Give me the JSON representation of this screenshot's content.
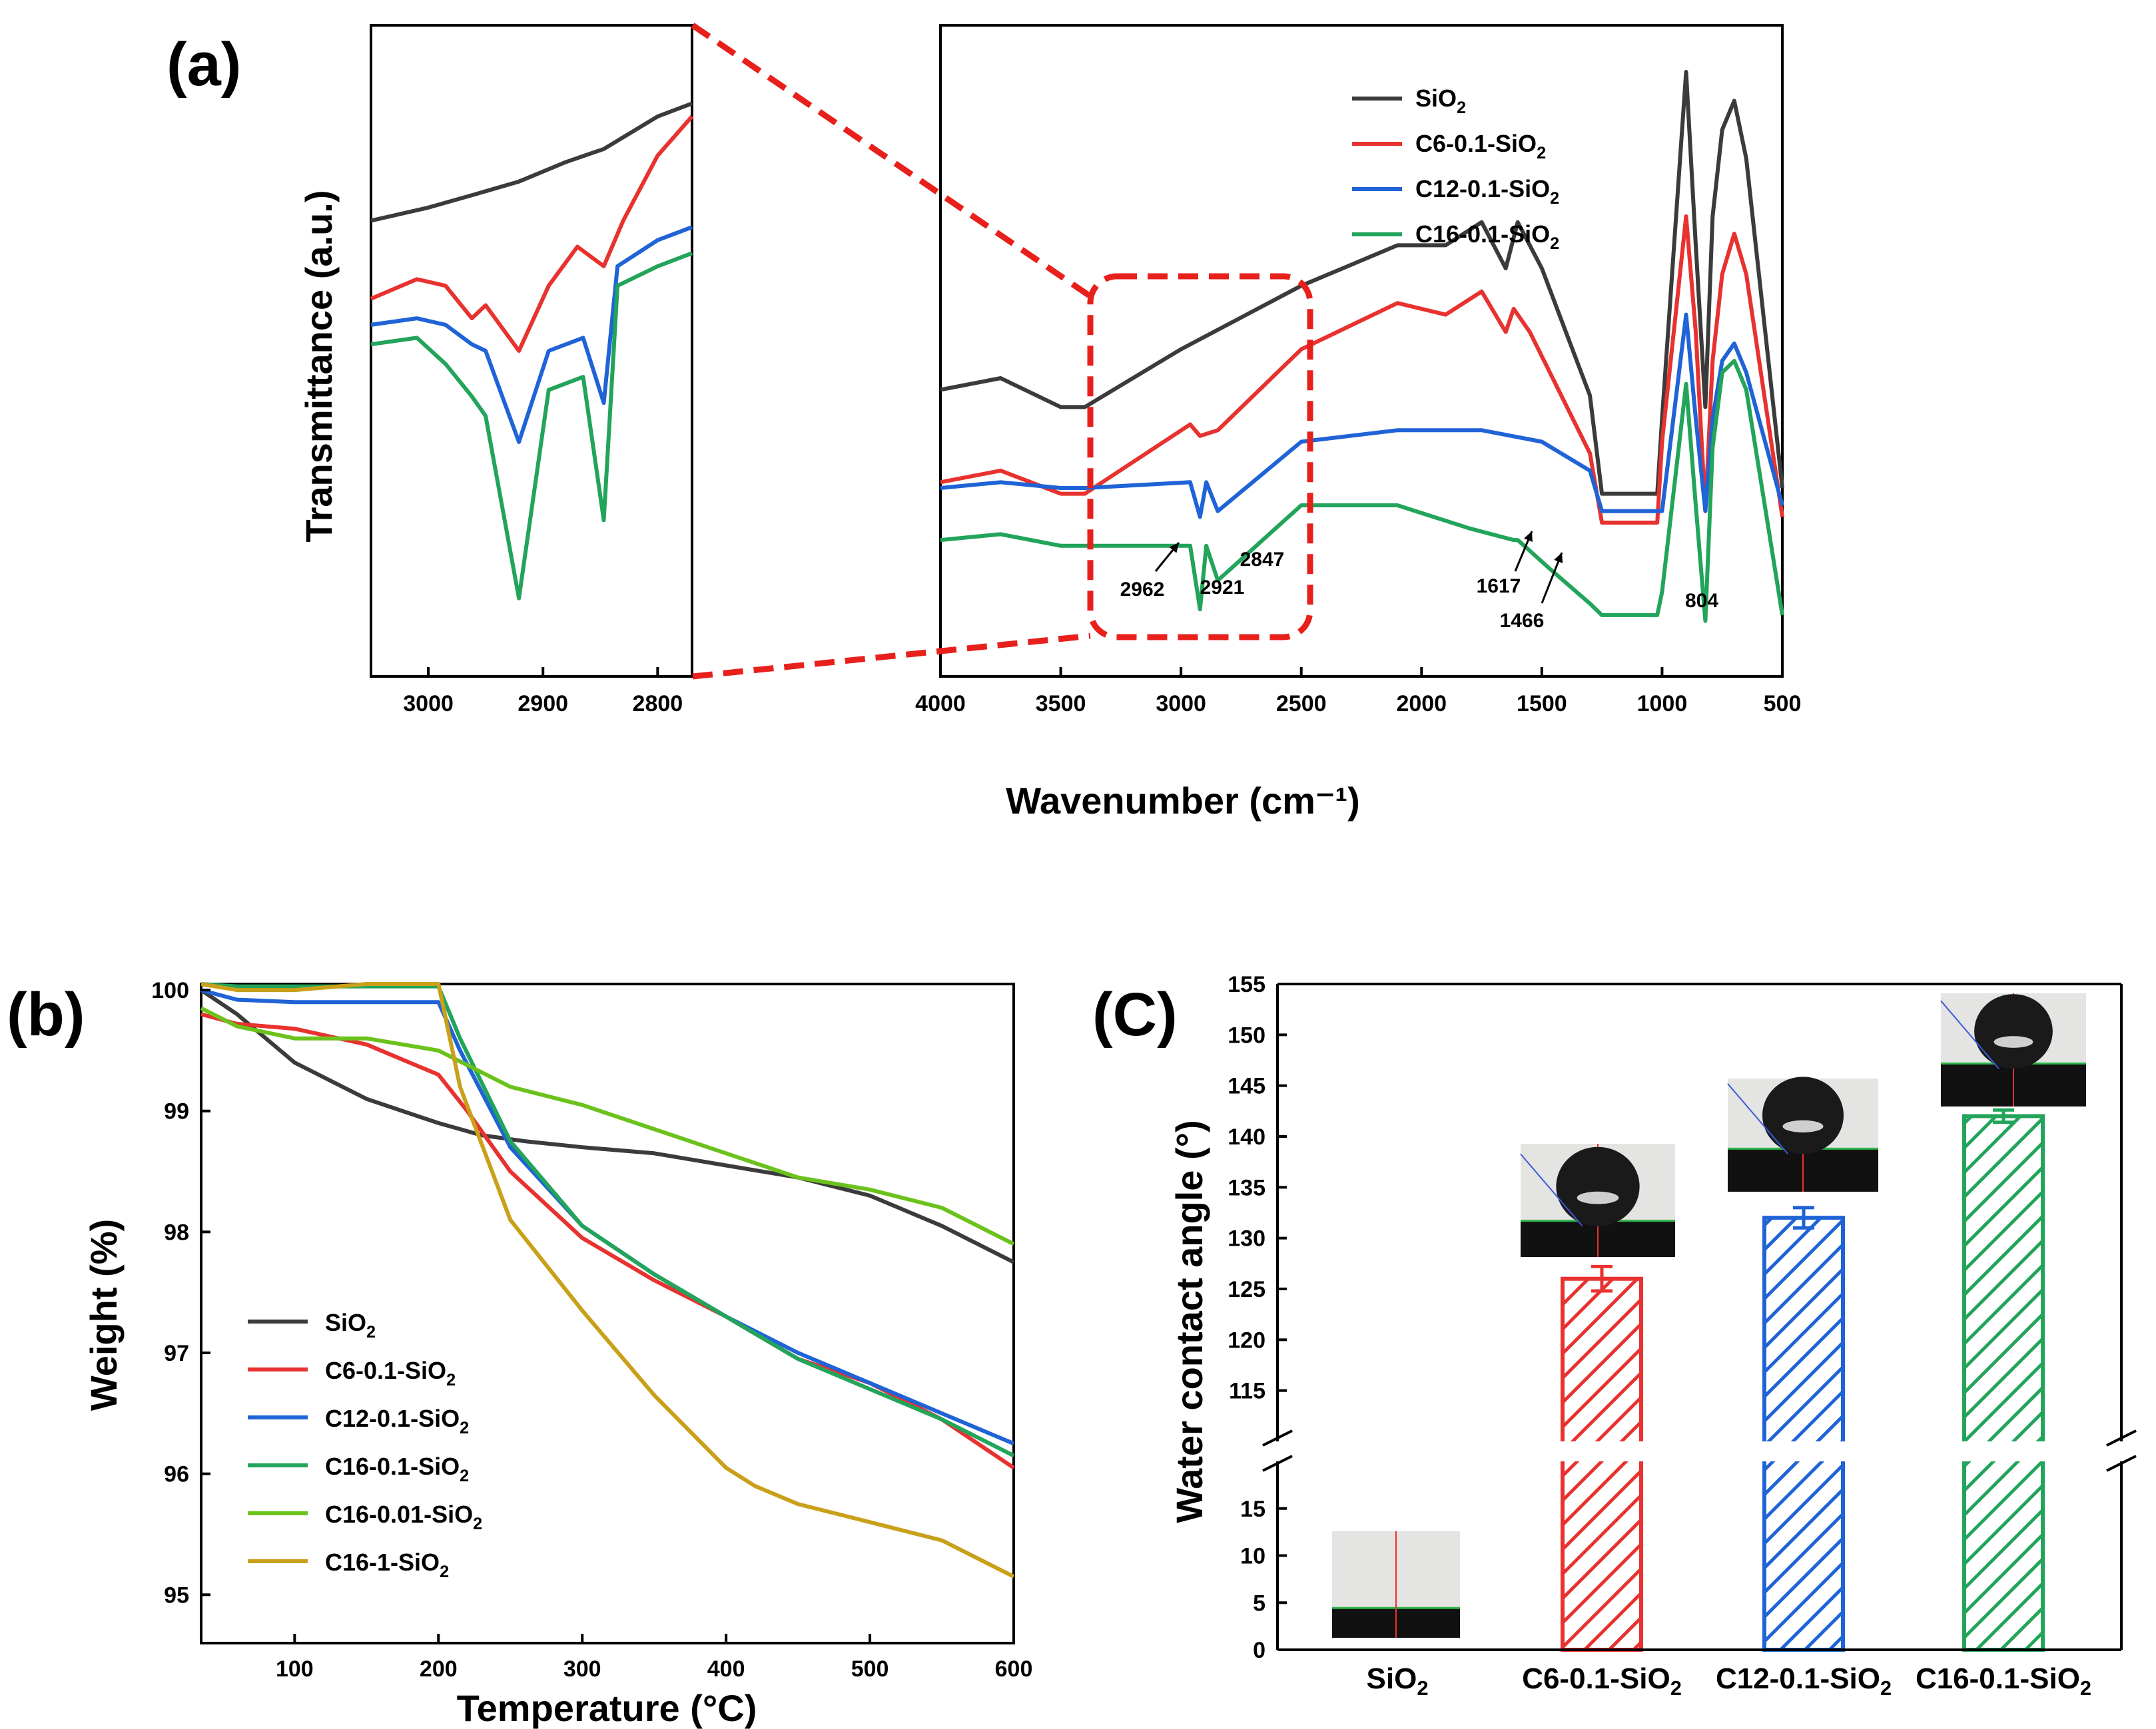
{
  "panels": {
    "a": "(a)",
    "b": "(b)",
    "c": "(C)"
  },
  "colors": {
    "SiO2": "#3b3b3b",
    "C6": "#e8322f",
    "C12": "#1f63d6",
    "C16": "#22a45a",
    "C16_001": "#6cc21c",
    "C16_1": "#c9a019",
    "zoom": "#e8201c"
  },
  "chart_data": [
    {
      "id": "ftir-zoom",
      "type": "line",
      "xlabel": "Wavenumber (cm⁻¹)",
      "ylabel": "Transmittance (a.u.)",
      "x_reversed": true,
      "xlim": [
        3050,
        2770
      ],
      "xticks": [
        "3000",
        "2900",
        "2800"
      ],
      "xtick_values": [
        3000,
        2900,
        2800
      ],
      "series": [
        {
          "key": "SiO2",
          "x": [
            3050,
            3000,
            2960,
            2921,
            2880,
            2847,
            2800,
            2770
          ],
          "y": [
            70,
            72,
            74,
            76,
            79,
            81,
            86,
            88
          ]
        },
        {
          "key": "C6",
          "x": [
            3050,
            3010,
            2985,
            2962,
            2950,
            2921,
            2895,
            2870,
            2847,
            2830,
            2800,
            2770
          ],
          "y": [
            58,
            61,
            60,
            55,
            57,
            50,
            60,
            66,
            63,
            70,
            80,
            86
          ]
        },
        {
          "key": "C12",
          "x": [
            3050,
            3010,
            2985,
            2962,
            2950,
            2921,
            2895,
            2865,
            2847,
            2835,
            2800,
            2770
          ],
          "y": [
            54,
            55,
            54,
            51,
            50,
            36,
            50,
            52,
            42,
            63,
            67,
            69
          ]
        },
        {
          "key": "C16",
          "x": [
            3050,
            3010,
            2985,
            2962,
            2950,
            2921,
            2895,
            2865,
            2847,
            2835,
            2800,
            2770
          ],
          "y": [
            51,
            52,
            48,
            43,
            40,
            12,
            44,
            46,
            24,
            60,
            63,
            65
          ]
        }
      ]
    },
    {
      "id": "ftir-full",
      "type": "line",
      "x_reversed": true,
      "xlim": [
        4000,
        500
      ],
      "xticks": [
        "4000",
        "3500",
        "3000",
        "2500",
        "2000",
        "1500",
        "1000",
        "500"
      ],
      "xtick_values": [
        4000,
        3500,
        3000,
        2500,
        2000,
        1500,
        1000,
        500
      ],
      "legend": [
        "SiO₂",
        "C6-0.1-SiO₂",
        "C12-0.1-SiO₂",
        "C16-0.1-SiO₂"
      ],
      "legend_position": "top-right",
      "annotations": [
        "2962",
        "2921",
        "2847",
        "1617",
        "1466",
        "804"
      ],
      "series": [
        {
          "key": "SiO2",
          "x": [
            4000,
            3750,
            3500,
            3400,
            3000,
            2500,
            2100,
            1900,
            1750,
            1650,
            1600,
            1500,
            1300,
            1250,
            1020,
            1000,
            900,
            860,
            820,
            790,
            750,
            700,
            650,
            500
          ],
          "y": [
            45,
            47,
            42,
            42,
            52,
            63,
            70,
            70,
            74,
            66,
            74,
            66,
            44,
            27,
            27,
            40,
            100,
            70,
            42,
            75,
            90,
            95,
            85,
            28
          ]
        },
        {
          "key": "C6",
          "x": [
            4000,
            3750,
            3500,
            3400,
            2962,
            2921,
            2847,
            2500,
            2100,
            1900,
            1750,
            1650,
            1617,
            1550,
            1300,
            1250,
            1020,
            1000,
            900,
            860,
            820,
            790,
            750,
            700,
            650,
            500
          ],
          "y": [
            29,
            31,
            27,
            27,
            39,
            37,
            38,
            52,
            60,
            58,
            62,
            55,
            59,
            55,
            34,
            22,
            22,
            36,
            75,
            55,
            24,
            50,
            65,
            72,
            65,
            23
          ]
        },
        {
          "key": "C12",
          "x": [
            4000,
            3750,
            3500,
            3400,
            2962,
            2921,
            2895,
            2847,
            2500,
            2100,
            1900,
            1750,
            1500,
            1300,
            1250,
            1020,
            1000,
            900,
            860,
            820,
            790,
            750,
            700,
            650,
            500
          ],
          "y": [
            28,
            29,
            28,
            28,
            29,
            23,
            29,
            24,
            36,
            38,
            38,
            38,
            36,
            31,
            24,
            24,
            24,
            58,
            40,
            24,
            40,
            50,
            53,
            48,
            25
          ]
        },
        {
          "key": "C16",
          "x": [
            4000,
            3750,
            3500,
            3400,
            2962,
            2921,
            2895,
            2847,
            2500,
            2100,
            1800,
            1617,
            1600,
            1466,
            1300,
            1250,
            1020,
            1000,
            900,
            860,
            820,
            790,
            750,
            700,
            650,
            500
          ],
          "y": [
            19,
            20,
            18,
            18,
            18,
            7,
            18,
            12,
            25,
            25,
            21,
            19,
            19,
            14,
            8,
            6,
            6,
            10,
            46,
            25,
            5,
            35,
            48,
            50,
            45,
            6
          ]
        }
      ]
    },
    {
      "id": "tga",
      "type": "line",
      "xlabel": "Temperature (°C)",
      "ylabel": "Weight (%)",
      "xlim": [
        35,
        600
      ],
      "ylim": [
        94.6,
        100.05
      ],
      "xticks": [
        "100",
        "200",
        "300",
        "400",
        "500",
        "600"
      ],
      "xtick_values": [
        100,
        200,
        300,
        400,
        500,
        600
      ],
      "yticks": [
        "95",
        "96",
        "97",
        "98",
        "99",
        "100"
      ],
      "ytick_values": [
        95,
        96,
        97,
        98,
        99,
        100
      ],
      "legend": [
        "SiO₂",
        "C6-0.1-SiO₂",
        "C12-0.1-SiO₂",
        "C16-0.1-SiO₂",
        "C16-0.01-SiO₂",
        "C16-1-SiO₂"
      ],
      "legend_position": "bottom-left",
      "series": [
        {
          "key": "SiO2",
          "x": [
            35,
            60,
            100,
            150,
            200,
            230,
            260,
            300,
            350,
            400,
            450,
            500,
            550,
            600
          ],
          "y": [
            100.0,
            99.8,
            99.4,
            99.1,
            98.9,
            98.8,
            98.75,
            98.7,
            98.65,
            98.55,
            98.45,
            98.3,
            98.05,
            97.75
          ]
        },
        {
          "key": "C6",
          "x": [
            35,
            60,
            100,
            150,
            200,
            220,
            250,
            300,
            350,
            400,
            450,
            500,
            550,
            600
          ],
          "y": [
            99.8,
            99.72,
            99.68,
            99.55,
            99.3,
            99.0,
            98.5,
            97.95,
            97.6,
            97.3,
            96.95,
            96.75,
            96.45,
            96.05
          ]
        },
        {
          "key": "C12",
          "x": [
            35,
            60,
            100,
            150,
            200,
            215,
            250,
            300,
            350,
            400,
            450,
            500,
            550,
            600
          ],
          "y": [
            100.0,
            99.92,
            99.9,
            99.9,
            99.9,
            99.5,
            98.7,
            98.05,
            97.65,
            97.3,
            97.0,
            96.75,
            96.5,
            96.25
          ]
        },
        {
          "key": "C16",
          "x": [
            35,
            60,
            100,
            150,
            200,
            215,
            250,
            300,
            350,
            400,
            450,
            500,
            550,
            600
          ],
          "y": [
            100.05,
            100.03,
            100.03,
            100.03,
            100.03,
            99.6,
            98.75,
            98.05,
            97.65,
            97.3,
            96.95,
            96.7,
            96.45,
            96.15
          ]
        },
        {
          "key": "C16_001",
          "x": [
            35,
            60,
            100,
            150,
            200,
            250,
            300,
            350,
            400,
            450,
            500,
            550,
            600
          ],
          "y": [
            99.85,
            99.7,
            99.6,
            99.6,
            99.5,
            99.2,
            99.05,
            98.85,
            98.65,
            98.45,
            98.35,
            98.2,
            97.9
          ]
        },
        {
          "key": "C16_1",
          "x": [
            35,
            60,
            100,
            150,
            200,
            215,
            250,
            300,
            350,
            400,
            420,
            450,
            500,
            550,
            600
          ],
          "y": [
            100.05,
            100.0,
            100.0,
            100.05,
            100.05,
            99.2,
            98.1,
            97.35,
            96.65,
            96.05,
            95.9,
            95.75,
            95.6,
            95.45,
            95.15
          ]
        }
      ]
    },
    {
      "id": "contact-angle",
      "type": "bar",
      "ylabel": "Water contact angle (°)",
      "categories": [
        "SiO₂",
        "C6-0.1-SiO₂",
        "C12-0.1-SiO₂",
        "C16-0.1-SiO₂"
      ],
      "values": [
        0,
        126,
        132,
        142
      ],
      "errors": [
        0,
        1.2,
        1.0,
        0.6
      ],
      "axis_break": [
        20,
        110
      ],
      "ylim_lower": [
        0,
        20
      ],
      "ylim_upper": [
        110,
        155
      ],
      "yticks_lower": [
        "0",
        "5",
        "10",
        "15"
      ],
      "ytick_values_lower": [
        0,
        5,
        10,
        15
      ],
      "yticks_upper": [
        "115",
        "120",
        "125",
        "130",
        "135",
        "140",
        "145",
        "150",
        "155"
      ],
      "ytick_values_upper": [
        115,
        120,
        125,
        130,
        135,
        140,
        145,
        150,
        155
      ],
      "bar_fill": "hatched",
      "bar_colors": [
        "#3b3b3b",
        "#e8322f",
        "#1f63d6",
        "#22a45a"
      ]
    }
  ]
}
